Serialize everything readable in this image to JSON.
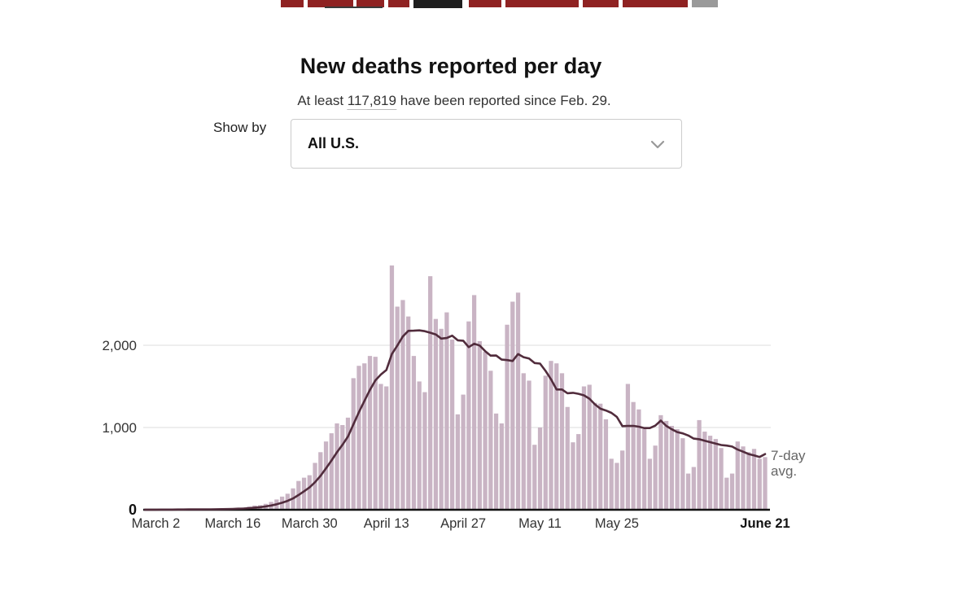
{
  "header": {
    "title": "New deaths reported per day",
    "subtitle_prefix": "At least ",
    "subtitle_count": "117,819",
    "subtitle_suffix": " have been reported since Feb. 29."
  },
  "controls": {
    "show_by_label": "Show by",
    "selected_option": "All U.S."
  },
  "annotation": {
    "line1": "7-day",
    "line2": "avg."
  },
  "chart_data": {
    "type": "bar",
    "title": "New deaths reported per day",
    "date_range": {
      "start": "Feb 29",
      "end": "June 21"
    },
    "ylim": [
      0,
      3100
    ],
    "grid": "horizontal lines at 1,000 and 2,000",
    "legend_position": "annotation at right end of line",
    "bar_series": {
      "name": "New deaths reported per day",
      "color": "#c9b4c4",
      "values": [
        1,
        1,
        2,
        4,
        3,
        3,
        4,
        4,
        5,
        4,
        5,
        8,
        7,
        9,
        12,
        11,
        18,
        23,
        27,
        38,
        52,
        55,
        72,
        95,
        125,
        160,
        195,
        260,
        350,
        390,
        420,
        570,
        700,
        830,
        930,
        1050,
        1030,
        1120,
        1600,
        1750,
        1780,
        1870,
        1860,
        1530,
        1500,
        2970,
        2470,
        2550,
        2350,
        1870,
        1560,
        1430,
        2840,
        2320,
        2200,
        2400,
        2070,
        1160,
        1400,
        2290,
        2610,
        2050,
        1920,
        1690,
        1170,
        1050,
        2250,
        2530,
        2640,
        1660,
        1570,
        790,
        1000,
        1630,
        1810,
        1780,
        1660,
        1250,
        820,
        920,
        1500,
        1520,
        1300,
        1290,
        1100,
        620,
        570,
        720,
        1530,
        1310,
        1220,
        980,
        620,
        780,
        1150,
        1080,
        1020,
        980,
        870,
        440,
        520,
        1090,
        950,
        900,
        860,
        750,
        390,
        440,
        830,
        770,
        700,
        740,
        620,
        640
      ]
    },
    "line_series": {
      "name": "7-day avg.",
      "color": "#512c3c",
      "derivation": "7-day trailing average of bar values"
    },
    "xticks": [
      {
        "index": 2,
        "label": "March 2"
      },
      {
        "index": 16,
        "label": "March 16"
      },
      {
        "index": 30,
        "label": "March 30"
      },
      {
        "index": 44,
        "label": "April 13"
      },
      {
        "index": 58,
        "label": "April 27"
      },
      {
        "index": 72,
        "label": "May 11"
      },
      {
        "index": 86,
        "label": "May 25"
      },
      {
        "index": 113,
        "label": "June 21",
        "bold": true
      }
    ],
    "yticks": [
      {
        "value": 0,
        "label": "0",
        "bold": true
      },
      {
        "value": 1000,
        "label": "1,000"
      },
      {
        "value": 2000,
        "label": "2,000"
      }
    ]
  }
}
